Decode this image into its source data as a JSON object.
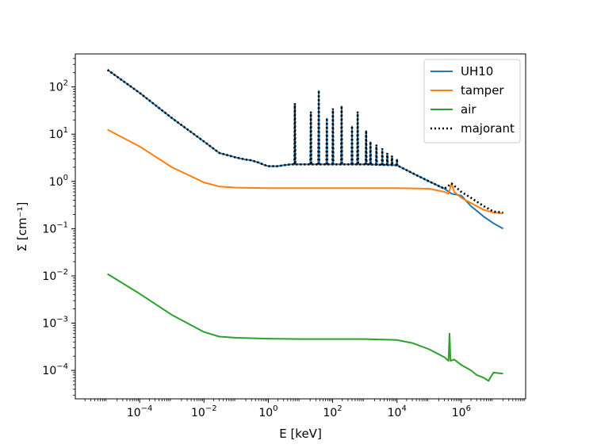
{
  "chart_data": {
    "type": "line",
    "title": "",
    "xlabel": "E [keV]",
    "ylabel": "Σ [cm⁻¹]",
    "xscale": "log",
    "yscale": "log",
    "xlim": [
      1e-06,
      100000000.0
    ],
    "ylim": [
      2.5e-05,
      500
    ],
    "x_ticks": [
      {
        "value": 0.0001,
        "base": "10",
        "exp": "−4"
      },
      {
        "value": 0.01,
        "base": "10",
        "exp": "−2"
      },
      {
        "value": 1,
        "base": "10",
        "exp": "0"
      },
      {
        "value": 100.0,
        "base": "10",
        "exp": "2"
      },
      {
        "value": 10000.0,
        "base": "10",
        "exp": "4"
      },
      {
        "value": 1000000.0,
        "base": "10",
        "exp": "6"
      }
    ],
    "y_ticks": [
      {
        "value": 0.0001,
        "base": "10",
        "exp": "−4"
      },
      {
        "value": 0.001,
        "base": "10",
        "exp": "−3"
      },
      {
        "value": 0.01,
        "base": "10",
        "exp": "−2"
      },
      {
        "value": 0.1,
        "base": "10",
        "exp": "−1"
      },
      {
        "value": 1,
        "base": "10",
        "exp": "0"
      },
      {
        "value": 10,
        "base": "10",
        "exp": "1"
      },
      {
        "value": 100,
        "base": "10",
        "exp": "2"
      }
    ],
    "legend_position": "top-right",
    "grid": false,
    "series": [
      {
        "name": "UH10",
        "color": "#1f77b4",
        "style": "solid",
        "x": [
          1e-05,
          0.0001,
          0.001,
          0.01,
          0.03,
          0.1,
          0.2,
          0.3,
          0.5,
          0.8,
          1,
          2,
          3,
          5,
          10,
          30,
          100,
          300,
          1000,
          3000,
          10000,
          30000,
          100000,
          300000,
          500000,
          1000000,
          2000000,
          5000000,
          10000000,
          20000000
        ],
        "y": [
          230,
          75,
          22,
          7,
          4,
          3.2,
          2.9,
          2.8,
          2.5,
          2.2,
          2.1,
          2.1,
          2.2,
          2.3,
          2.3,
          2.3,
          2.3,
          2.3,
          2.3,
          2.25,
          2.2,
          1.5,
          1.0,
          0.7,
          0.55,
          0.5,
          0.3,
          0.18,
          0.13,
          0.1
        ]
      },
      {
        "name": "tamper",
        "color": "#ff7f0e",
        "style": "solid",
        "x": [
          1e-05,
          0.0001,
          0.001,
          0.01,
          0.03,
          0.1,
          1,
          10,
          100,
          1000,
          10000,
          100000,
          300000,
          400000,
          500000,
          600000,
          1000000,
          2000000,
          5000000,
          10000000,
          20000000
        ],
        "y": [
          12.5,
          5.5,
          2.0,
          0.95,
          0.78,
          0.74,
          0.72,
          0.72,
          0.72,
          0.72,
          0.72,
          0.7,
          0.6,
          0.55,
          0.9,
          0.6,
          0.45,
          0.35,
          0.25,
          0.22,
          0.21
        ]
      },
      {
        "name": "air",
        "color": "#2ca02c",
        "style": "solid",
        "x": [
          1e-05,
          0.0001,
          0.001,
          0.01,
          0.03,
          0.1,
          1,
          10,
          100,
          1000,
          10000,
          30000,
          100000,
          300000,
          400000,
          430000,
          460000,
          600000,
          1000000,
          2000000,
          3000000,
          5000000,
          7000000,
          10000000,
          20000000
        ],
        "y": [
          0.011,
          0.0042,
          0.0015,
          0.00065,
          0.00052,
          0.00049,
          0.00047,
          0.00046,
          0.00046,
          0.00046,
          0.00044,
          0.00038,
          0.00028,
          0.00019,
          0.00016,
          0.0006,
          0.00016,
          0.00017,
          0.00013,
          0.0001,
          8e-05,
          7e-05,
          6e-05,
          9e-05,
          8.5e-05
        ]
      },
      {
        "name": "majorant",
        "color": "#000000",
        "style": "dotted",
        "x": [
          1e-05,
          0.0001,
          0.001,
          0.01,
          0.03,
          0.1,
          0.2,
          0.3,
          0.5,
          0.8,
          1,
          2,
          3,
          5,
          10,
          30,
          100,
          300,
          1000,
          3000,
          10000,
          30000,
          100000,
          300000,
          500000,
          1000000,
          2000000,
          5000000,
          10000000,
          20000000
        ],
        "y": [
          230,
          75,
          22,
          7,
          4,
          3.2,
          2.9,
          2.8,
          2.5,
          2.2,
          2.1,
          2.1,
          2.2,
          2.3,
          2.3,
          2.3,
          2.3,
          2.3,
          2.3,
          2.25,
          2.2,
          1.5,
          1.0,
          0.7,
          0.9,
          0.6,
          0.45,
          0.3,
          0.23,
          0.22
        ]
      }
    ],
    "resonance_peaks": [
      {
        "x": 6.7,
        "y": 45
      },
      {
        "x": 21,
        "y": 30
      },
      {
        "x": 37,
        "y": 85
      },
      {
        "x": 66,
        "y": 22
      },
      {
        "x": 102,
        "y": 35
      },
      {
        "x": 190,
        "y": 40
      },
      {
        "x": 400,
        "y": 15
      },
      {
        "x": 600,
        "y": 30
      },
      {
        "x": 1100,
        "y": 12
      },
      {
        "x": 1500,
        "y": 7
      },
      {
        "x": 2300,
        "y": 6
      },
      {
        "x": 3500,
        "y": 5
      },
      {
        "x": 5000,
        "y": 4
      },
      {
        "x": 7000,
        "y": 3.5
      },
      {
        "x": 10000,
        "y": 3
      }
    ]
  }
}
